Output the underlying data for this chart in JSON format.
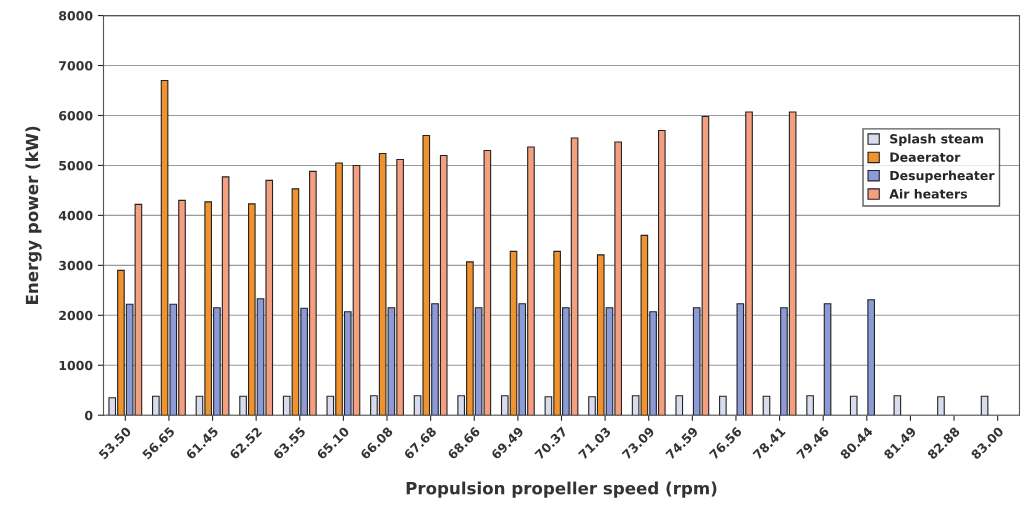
{
  "chart_data": {
    "type": "bar",
    "xlabel": "Propulsion propeller speed (rpm)",
    "ylabel": "Energy power (kW)",
    "categories": [
      "53.50",
      "56.65",
      "61.45",
      "62.52",
      "63.55",
      "65.10",
      "66.08",
      "67.68",
      "68.66",
      "69.49",
      "70.37",
      "71.03",
      "73.09",
      "74.59",
      "76.56",
      "78.41",
      "79.46",
      "80.44",
      "81.49",
      "82.88",
      "83.00"
    ],
    "series": [
      {
        "name": "Splash steam",
        "color": "#d8dcee",
        "values": [
          350,
          380,
          380,
          380,
          380,
          380,
          390,
          390,
          390,
          390,
          370,
          370,
          390,
          390,
          380,
          380,
          390,
          380,
          390,
          370,
          380
        ]
      },
      {
        "name": "Deaerator",
        "color": "#f0922e",
        "values": [
          2900,
          6700,
          4270,
          4230,
          4530,
          5050,
          5240,
          5600,
          3070,
          3280,
          3280,
          3210,
          3600,
          null,
          null,
          null,
          null,
          null,
          null,
          null,
          null
        ]
      },
      {
        "name": "Desuperheater",
        "color": "#8c9ad8",
        "values": [
          2220,
          2220,
          2150,
          2330,
          2140,
          2070,
          2150,
          2230,
          2150,
          2230,
          2150,
          2150,
          2070,
          2150,
          2230,
          2150,
          2230,
          2310,
          null,
          null,
          null
        ]
      },
      {
        "name": "Air heaters",
        "color": "#f4a080",
        "values": [
          4220,
          4300,
          4770,
          4700,
          4880,
          5000,
          5120,
          5200,
          5300,
          5370,
          5550,
          5470,
          5700,
          5980,
          6070,
          6070,
          null,
          null,
          null,
          null,
          null
        ]
      }
    ],
    "ylim": [
      0,
      8000
    ],
    "yticks": [
      0,
      1000,
      2000,
      3000,
      4000,
      5000,
      6000,
      7000,
      8000
    ],
    "grid": "y",
    "legend": "center right"
  }
}
